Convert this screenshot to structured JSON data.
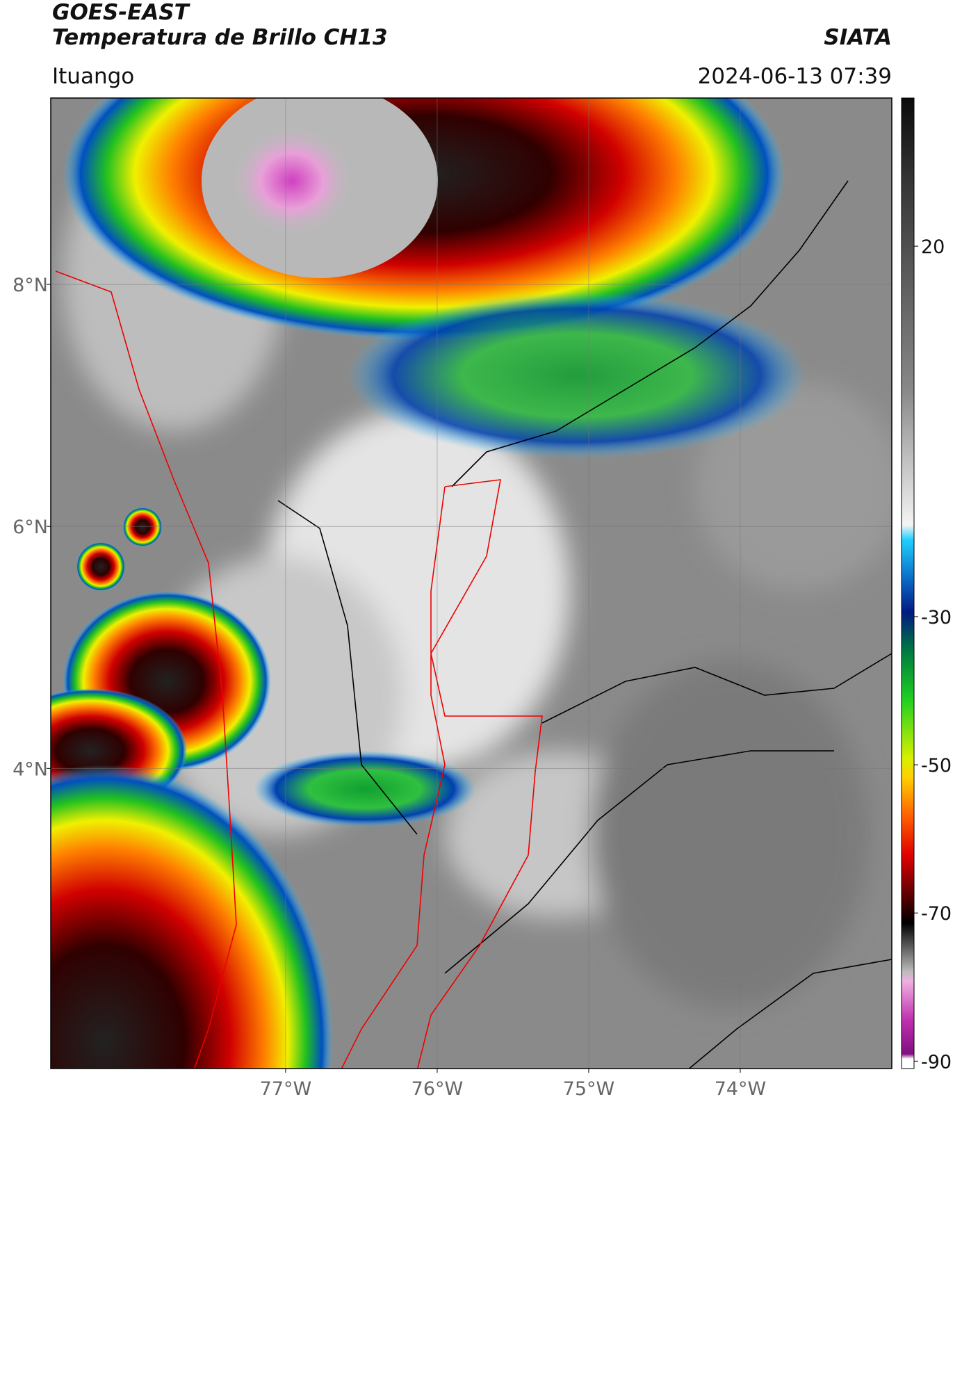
{
  "header": {
    "title_line1": "GOES-EAST",
    "title_line2": "Temperatura de Brillo CH13",
    "org": "SIATA",
    "location": "Ituango",
    "timestamp": "2024-06-13 07:39"
  },
  "map": {
    "xlim": [
      -78.55,
      -73
    ],
    "ylim": [
      1.52,
      9.54
    ],
    "xticks": [
      {
        "value": -77,
        "label": "77°W"
      },
      {
        "value": -76,
        "label": "76°W"
      },
      {
        "value": -75,
        "label": "75°W"
      },
      {
        "value": -74,
        "label": "74°W"
      }
    ],
    "yticks": [
      {
        "value": 8,
        "label": "8°N"
      },
      {
        "value": 6,
        "label": "6°N"
      },
      {
        "value": 4,
        "label": "4°N"
      }
    ]
  },
  "colorbar": {
    "lim": [
      -91,
      40
    ],
    "ticks": [
      20,
      -30,
      -50,
      -70,
      -90
    ]
  }
}
